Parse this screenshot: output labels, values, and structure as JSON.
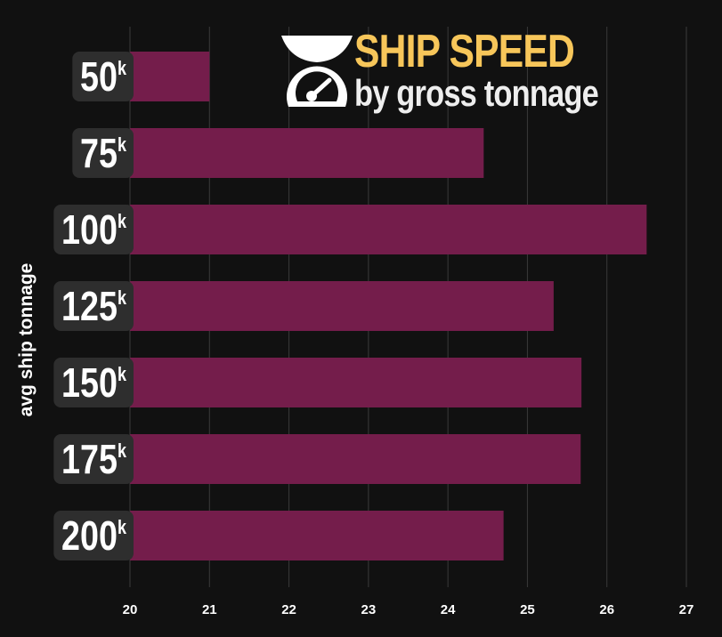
{
  "title": "SHIP SPEED",
  "subtitle": "by gross tonnage",
  "chart_data": {
    "type": "bar",
    "orientation": "horizontal",
    "categories": [
      "50",
      "75",
      "100",
      "125",
      "150",
      "175",
      "200"
    ],
    "category_suffix": "k",
    "values": [
      21.0,
      24.45,
      26.5,
      25.33,
      25.68,
      25.67,
      24.7
    ],
    "ylabel": "avg ship tonnage",
    "xlabel": "",
    "xlim": [
      20,
      27
    ],
    "x_ticks": [
      "20",
      "21",
      "22",
      "23",
      "24",
      "25",
      "26",
      "27"
    ],
    "grid": "vertical",
    "colors": {
      "bar": "#741d4b",
      "background": "#111111",
      "grid": "#3a3a3a",
      "label_box": "#2e2e2e",
      "title": "#f7c65a"
    }
  }
}
